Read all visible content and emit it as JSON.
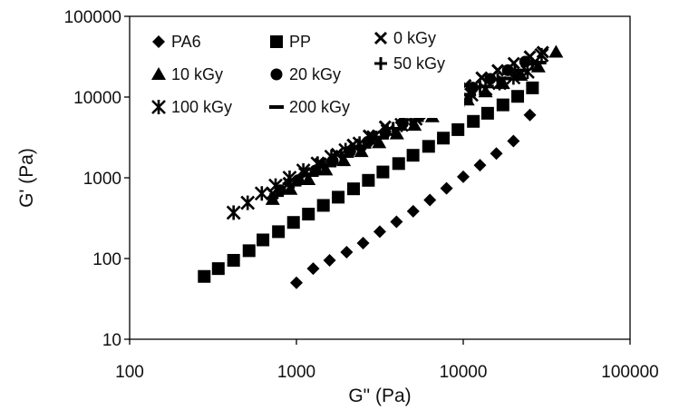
{
  "chart_data": {
    "type": "scatter",
    "xlabel": "G\" (Pa)",
    "ylabel": "G' (Pa)",
    "x_scale": "log",
    "y_scale": "log",
    "xlim": [
      100,
      100000
    ],
    "ylim": [
      10,
      100000
    ],
    "x_ticks": [
      "100",
      "1000",
      "10000",
      "100000"
    ],
    "y_ticks": [
      "10",
      "100",
      "1000",
      "10000",
      "100000"
    ],
    "grid": false,
    "legend_position": "top-left",
    "series": [
      {
        "name": "PA6",
        "marker": "diamond",
        "x": [
          1000,
          1260,
          1580,
          2000,
          2510,
          3160,
          3980,
          5010,
          6310,
          7940,
          10000,
          12600,
          15800,
          20000,
          25100
        ],
        "y": [
          50,
          75,
          95,
          120,
          155,
          215,
          285,
          385,
          530,
          740,
          1030,
          1430,
          2000,
          2850,
          6000
        ]
      },
      {
        "name": "PP",
        "marker": "square",
        "x": [
          280,
          340,
          420,
          520,
          630,
          780,
          960,
          1180,
          1450,
          1780,
          2200,
          2700,
          3300,
          4100,
          5000,
          6200,
          7600,
          9300,
          11500,
          14000,
          17300,
          21200,
          26000
        ],
        "y": [
          60,
          75,
          95,
          125,
          170,
          215,
          280,
          355,
          455,
          575,
          730,
          930,
          1180,
          1500,
          1900,
          2450,
          3100,
          3950,
          5000,
          6300,
          8000,
          10200,
          13000
        ]
      },
      {
        "name": "0 kGy",
        "marker": "x",
        "x": [
          720,
          900,
          1120,
          1400,
          1750,
          2180,
          2720,
          3400,
          4250,
          5300,
          6600,
          8250,
          10300,
          12900,
          16100,
          20100,
          25100,
          30000
        ],
        "y": [
          640,
          860,
          1140,
          1500,
          1970,
          2570,
          3330,
          4300,
          5500,
          7000,
          8900,
          11200,
          14000,
          17400,
          21500,
          26300,
          31800,
          36000
        ]
      },
      {
        "name": "50 kGy",
        "marker": "plus",
        "x": [
          900,
          1150,
          1450,
          1850,
          2350,
          3000,
          3800,
          4850,
          6150,
          7800,
          9950,
          12600,
          16100,
          20400,
          25900
        ],
        "y": [
          840,
          1120,
          1460,
          1900,
          2470,
          3200,
          4100,
          5250,
          6700,
          8500,
          10700,
          13400,
          16700,
          20800,
          25600
        ]
      },
      {
        "name": "10 kGy",
        "marker": "triangle",
        "x": [
          720,
          920,
          1180,
          1500,
          1920,
          2450,
          3130,
          4000,
          5100,
          6520,
          8320,
          10600,
          13600,
          17300,
          22100,
          28200,
          36000
        ],
        "y": [
          540,
          720,
          950,
          1250,
          1630,
          2110,
          2720,
          3500,
          4470,
          5700,
          7240,
          9180,
          11600,
          14700,
          18600,
          23600,
          36000
        ]
      },
      {
        "name": "20 kGy",
        "marker": "circle",
        "x": [
          800,
          1020,
          1300,
          1650,
          2100,
          2680,
          3410,
          4340,
          5530,
          7040,
          8960,
          11400,
          14500,
          18500,
          23500
        ],
        "y": [
          700,
          930,
          1230,
          1620,
          2130,
          2790,
          3640,
          4730,
          6130,
          7920,
          10200,
          13100,
          16800,
          21500,
          27400
        ]
      },
      {
        "name": "100 kGy",
        "marker": "asterisk",
        "x": [
          420,
          510,
          620,
          750,
          910,
          1100,
          1340,
          1620,
          1970,
          2390,
          2900,
          3520,
          4270,
          5180,
          6290,
          7630,
          9260,
          11200,
          13600,
          16500,
          20000,
          24300,
          29500
        ],
        "y": [
          370,
          490,
          640,
          800,
          1000,
          1230,
          1500,
          1820,
          2200,
          2650,
          3180,
          3800,
          4530,
          5400,
          6420,
          7620,
          9020,
          10700,
          12600,
          14900,
          17500,
          20600,
          33000
        ]
      },
      {
        "name": "200 kGy",
        "marker": "dash",
        "x": [
          760,
          970,
          1230,
          1570,
          2000,
          2540,
          3240,
          4120,
          5250,
          6680,
          8510,
          10800,
          13800,
          17600,
          22400,
          28500
        ],
        "y": [
          610,
          820,
          1080,
          1420,
          1860,
          2420,
          3130,
          4030,
          5170,
          6610,
          8420,
          10700,
          13500,
          17000,
          21300,
          26700
        ]
      }
    ]
  }
}
